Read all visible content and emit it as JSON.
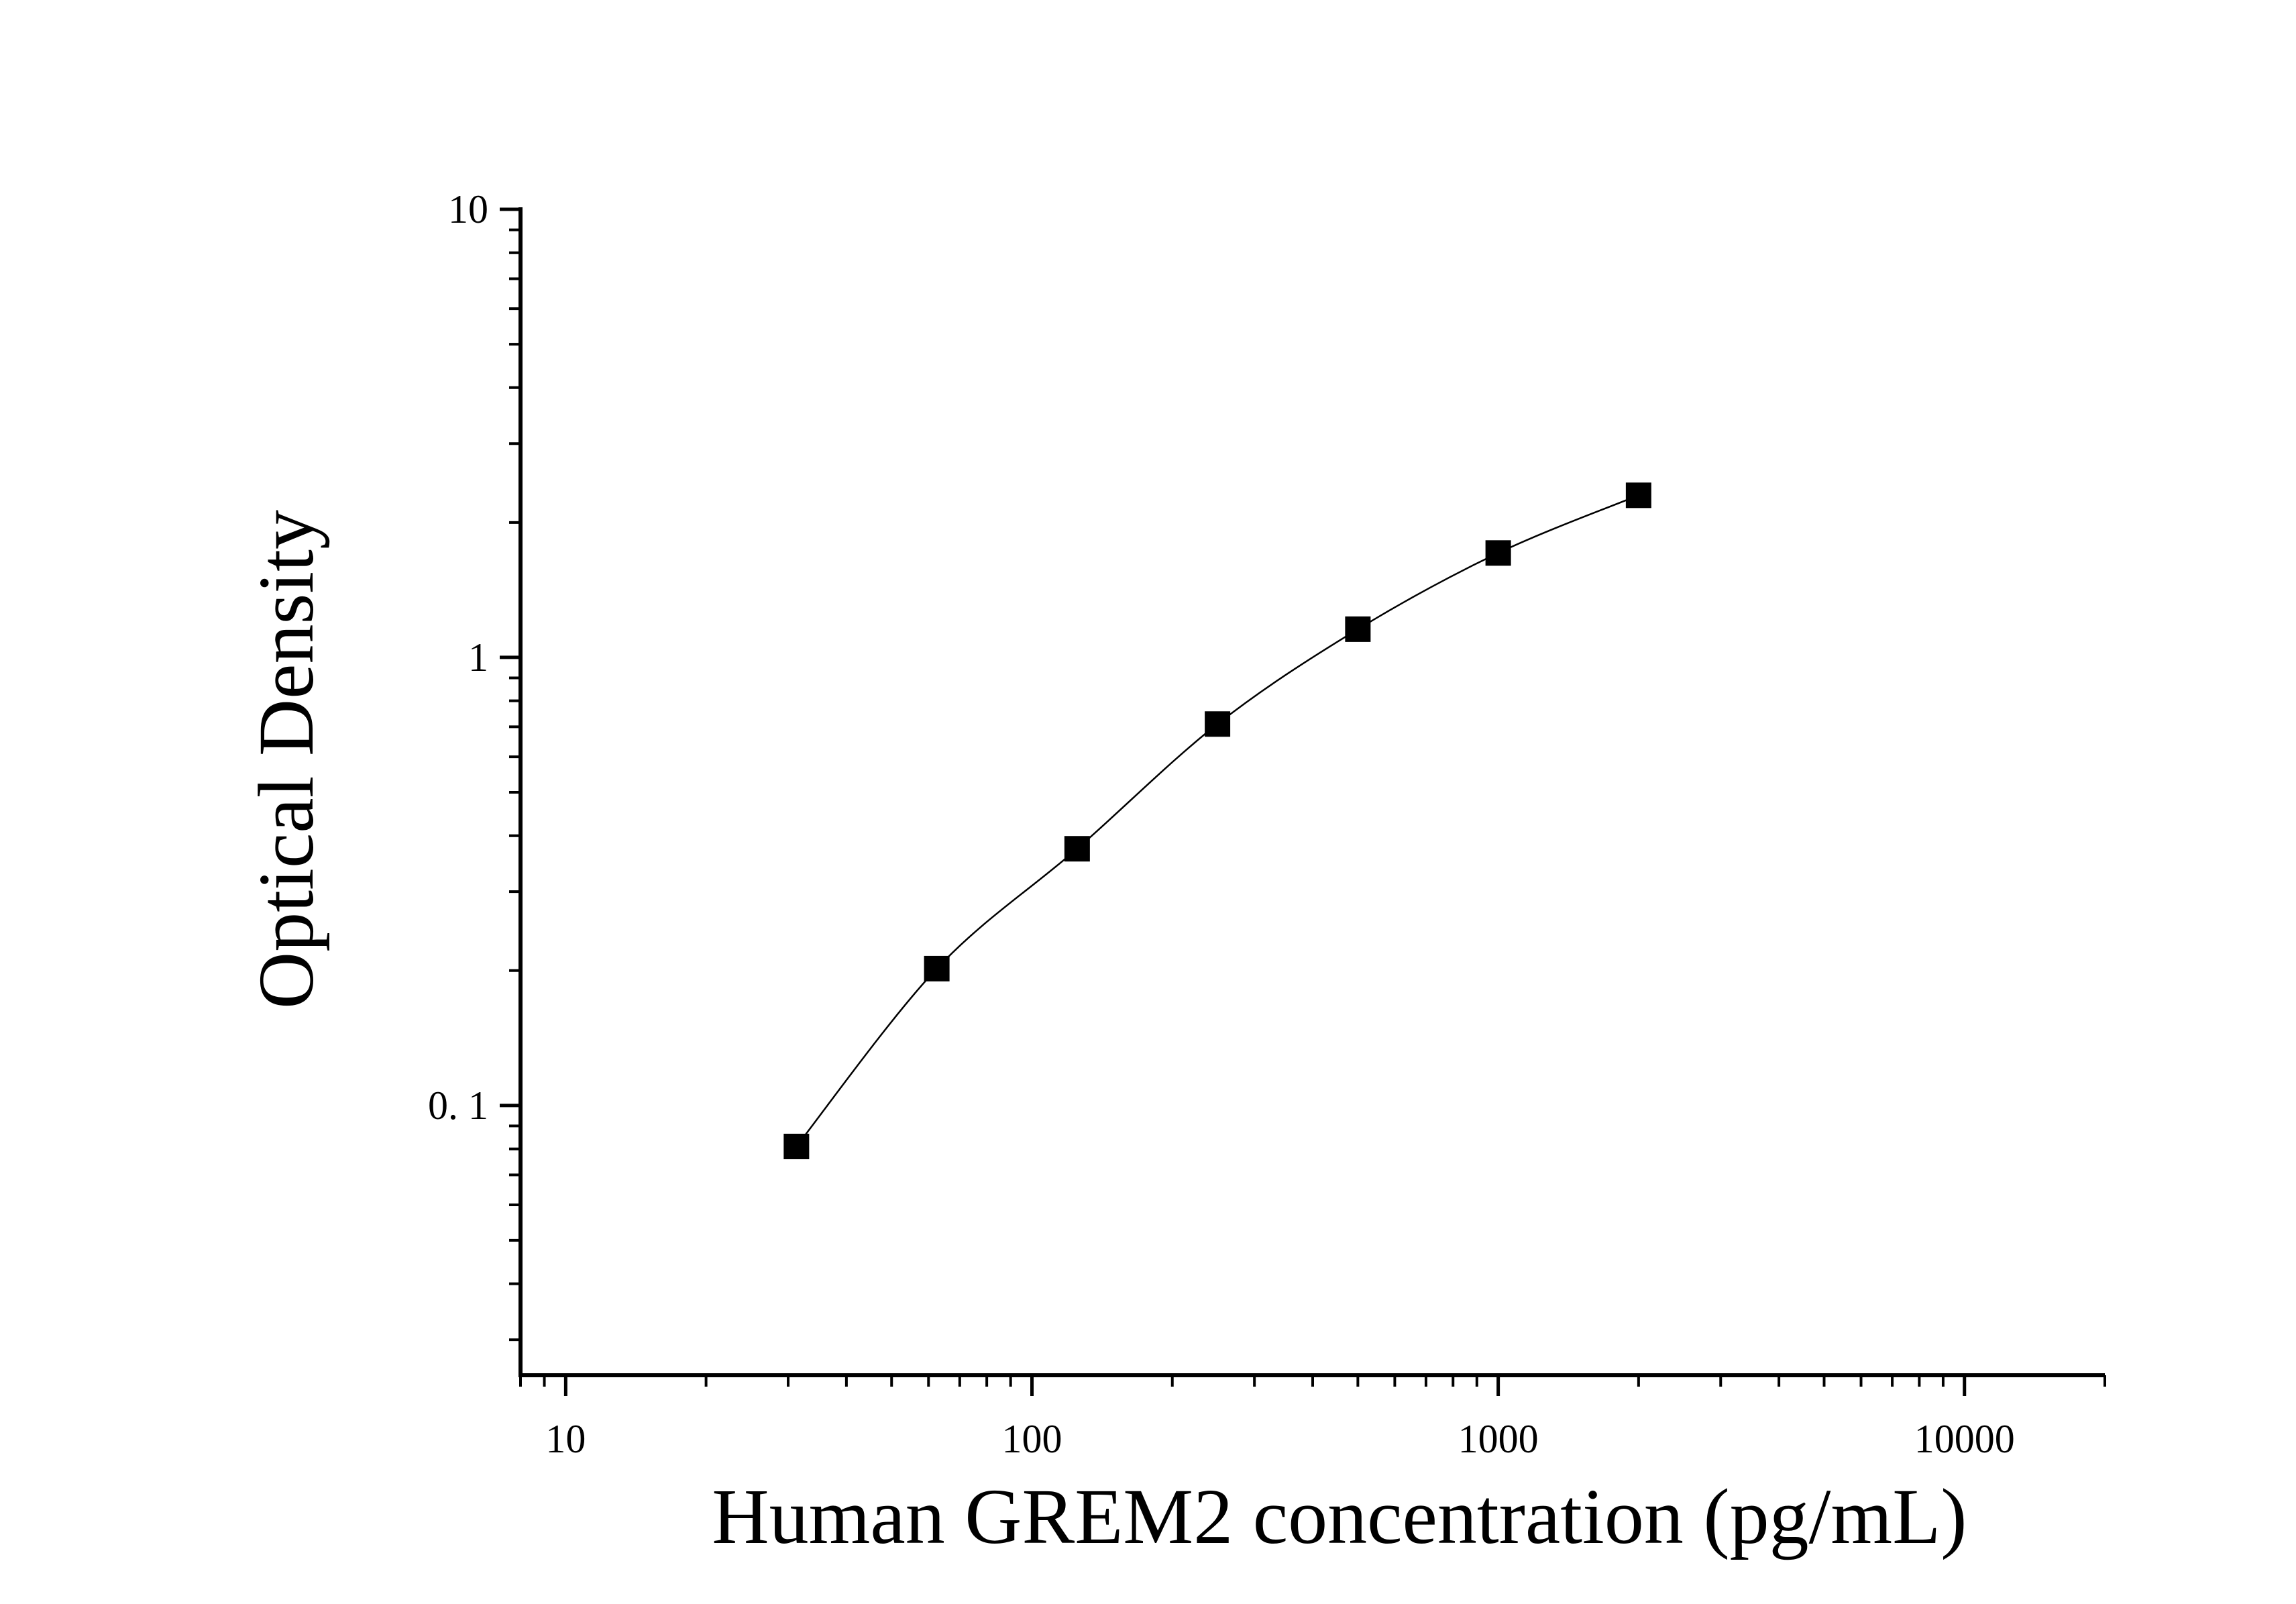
{
  "chart_data": {
    "type": "scatter",
    "x_label": "Human GREM2 concentration (pg/mL)",
    "y_label": "Optical Density",
    "x_scale": "log",
    "y_scale": "log",
    "series": [
      {
        "color": "#000000",
        "x": [
          31.25,
          62.5,
          125,
          250,
          500,
          1000,
          2000
        ],
        "values": [
          0.081,
          0.202,
          0.374,
          0.71,
          1.156,
          1.71,
          2.3
        ]
      }
    ],
    "fit_line": true,
    "xlim": [
      8,
      20000
    ],
    "ylim": [
      0.025,
      10
    ],
    "xticks": [
      10,
      100,
      1000,
      10000
    ],
    "yticks": [
      {
        "value": 0.1,
        "label": "0. 1"
      },
      1,
      10
    ]
  }
}
